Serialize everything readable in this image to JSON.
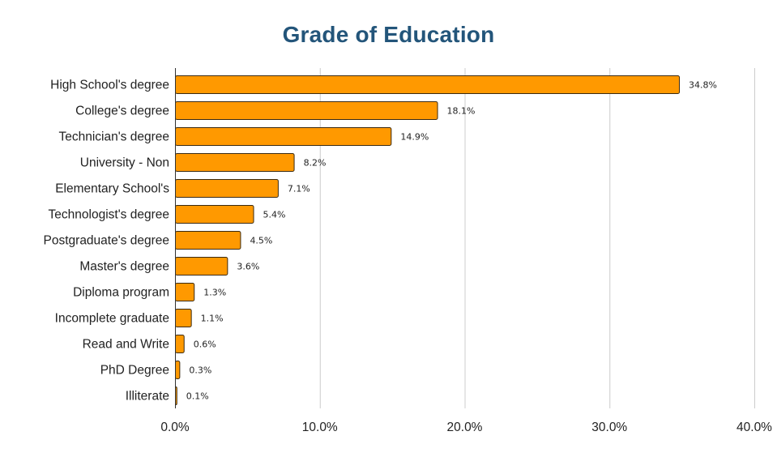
{
  "chart_data": {
    "type": "bar",
    "orientation": "horizontal",
    "title": "Grade of Education",
    "xlabel": "",
    "ylabel": "",
    "categories": [
      "High School's degree",
      "College's degree",
      "Technician's degree",
      "University - Non",
      "Elementary School's",
      "Technologist's degree",
      "Postgraduate's degree",
      "Master's degree",
      "Diploma program",
      "Incomplete graduate",
      "Read and Write",
      "PhD Degree",
      "Illiterate"
    ],
    "values": [
      34.8,
      18.1,
      14.9,
      8.2,
      7.1,
      5.4,
      4.5,
      3.6,
      1.3,
      1.1,
      0.6,
      0.3,
      0.1
    ],
    "data_labels": [
      "34.8%",
      "18.1%",
      "14.9%",
      "8.2%",
      "7.1%",
      "5.4%",
      "4.5%",
      "3.6%",
      "1.3%",
      "1.1%",
      "0.6%",
      "0.3%",
      "0.1%"
    ],
    "xlim": [
      0,
      40
    ],
    "xticks": [
      0,
      10,
      20,
      30,
      40
    ],
    "xtick_labels": [
      "0.0%",
      "10.0%",
      "20.0%",
      "30.0%",
      "40.0%"
    ],
    "grid": "vertical",
    "legend": "none",
    "colors": {
      "bar_fill": "#ff9900",
      "bar_stroke": "#3a2a10",
      "title": "#23557a",
      "grid": "#cccccc",
      "axis": "#333333"
    }
  }
}
